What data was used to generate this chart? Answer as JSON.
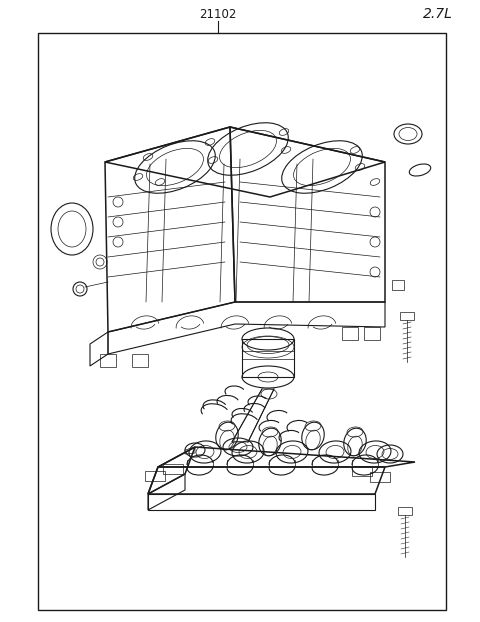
{
  "title": "21102",
  "subtitle": "2.7L",
  "bg_color": "#ffffff",
  "border_color": "#1a1a1a",
  "line_color": "#1a1a1a",
  "title_fontsize": 8.5,
  "subtitle_fontsize": 10,
  "fig_width": 4.8,
  "fig_height": 6.22,
  "dpi": 100
}
